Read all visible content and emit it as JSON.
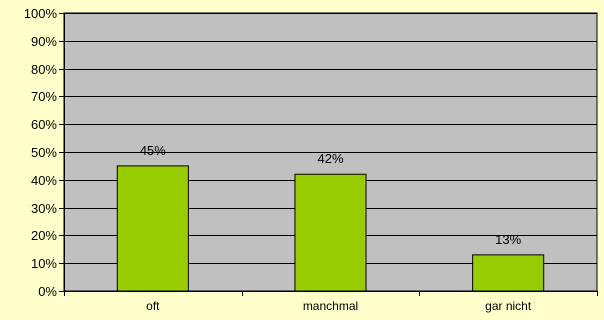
{
  "chart_data": {
    "type": "bar",
    "title": "",
    "xlabel": "",
    "ylabel": "",
    "categories": [
      "oft",
      "manchmal",
      "gar nicht"
    ],
    "values": [
      45,
      42,
      13
    ],
    "data_labels": [
      "45%",
      "42%",
      "13%"
    ],
    "ylim": [
      0,
      100
    ],
    "y_ticks": [
      0,
      10,
      20,
      30,
      40,
      50,
      60,
      70,
      80,
      90,
      100
    ],
    "y_tick_labels": [
      "0%",
      "10%",
      "20%",
      "30%",
      "40%",
      "50%",
      "60%",
      "70%",
      "80%",
      "90%",
      "100%"
    ],
    "grid": true,
    "legend": "none"
  },
  "colors": {
    "page_background": "#FFFFCC",
    "plot_background": "#C0C0C0",
    "bar_fill": "#99CC00",
    "bar_stroke": "#000000",
    "grid": "#000000",
    "axis": "#000000"
  }
}
